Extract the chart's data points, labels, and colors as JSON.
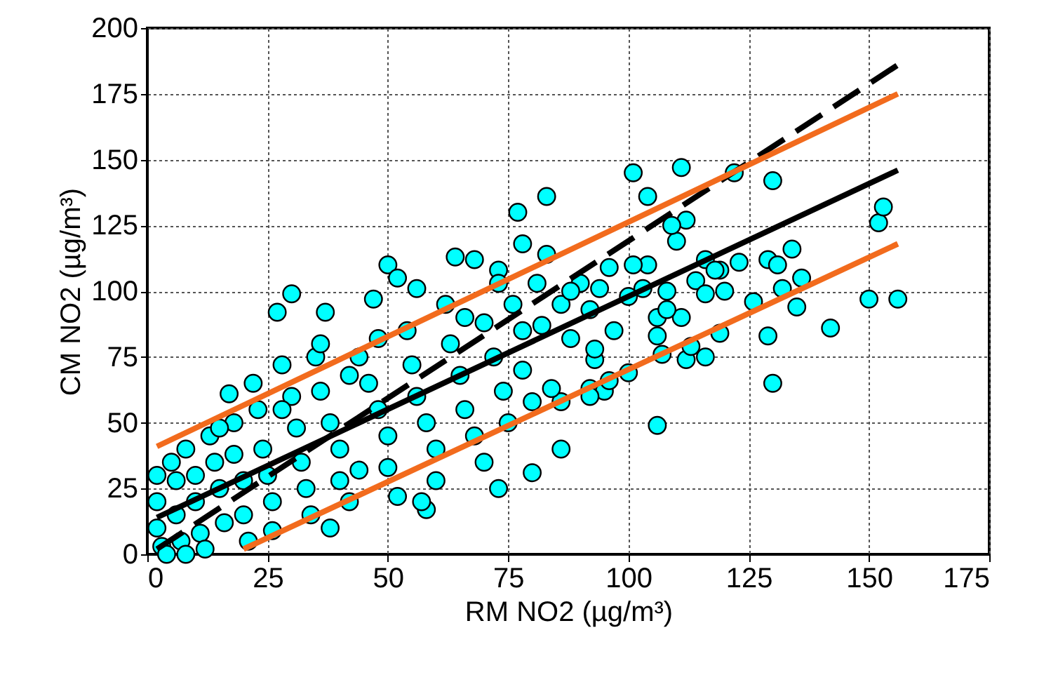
{
  "chart_data": {
    "type": "scatter",
    "xlabel": "RM NO2 (µg/m³)",
    "ylabel": "CM NO2 (µg/m³)",
    "xlim": [
      0,
      175
    ],
    "xticks": [
      0,
      25,
      50,
      75,
      100,
      125,
      150,
      175
    ],
    "ylim": [
      0,
      200
    ],
    "yticks": [
      0,
      25,
      50,
      75,
      100,
      125,
      150,
      175,
      200
    ],
    "grid": true,
    "series": [
      {
        "type": "scatter",
        "marker": "circle",
        "color": "#00ffff",
        "x": [
          27,
          30,
          37,
          50,
          52,
          56,
          64,
          68,
          73,
          77,
          78,
          83,
          83,
          101,
          104,
          111,
          112,
          110,
          109,
          122,
          130,
          129,
          131,
          134,
          132,
          136,
          135,
          126,
          123,
          119,
          116,
          119,
          142,
          150,
          156,
          152,
          153,
          130,
          129,
          106,
          100,
          112,
          116,
          113,
          111,
          106,
          106,
          108,
          103,
          104,
          101,
          96,
          94,
          97,
          92,
          95,
          92,
          96,
          93,
          93,
          88,
          86,
          80,
          73,
          58,
          57,
          38,
          86,
          84,
          82,
          81,
          86,
          90,
          92,
          100,
          114,
          116,
          118,
          120,
          108,
          107,
          2,
          2,
          2,
          3,
          4,
          5,
          6,
          6,
          7,
          8,
          8,
          10,
          10,
          11,
          12,
          13,
          14,
          15,
          16,
          17,
          18,
          18,
          20,
          20,
          21,
          22,
          23,
          24,
          25,
          26,
          26,
          28,
          30,
          31,
          32,
          33,
          34,
          35,
          36,
          38,
          40,
          40,
          42,
          44,
          46,
          47,
          48,
          50,
          50,
          52,
          54,
          55,
          56,
          58,
          60,
          60,
          62,
          63,
          65,
          66,
          68,
          70,
          70,
          72,
          74,
          75,
          76,
          78,
          78,
          80,
          48,
          42,
          36,
          28,
          15,
          44,
          66,
          73,
          88
        ],
        "values": [
          92,
          99,
          92,
          110,
          105,
          101,
          113,
          112,
          108,
          130,
          118,
          136,
          114,
          145,
          136,
          147,
          127,
          119,
          125,
          145,
          142,
          112,
          110,
          116,
          101,
          105,
          94,
          96,
          111,
          108,
          112,
          84,
          86,
          97,
          97,
          126,
          132,
          65,
          83,
          49,
          69,
          74,
          75,
          79,
          90,
          83,
          90,
          100,
          101,
          110,
          110,
          109,
          101,
          85,
          63,
          62,
          60,
          66,
          74,
          78,
          82,
          40,
          31,
          25,
          17,
          20,
          10,
          58,
          63,
          87,
          103,
          95,
          103,
          93,
          98,
          104,
          99,
          108,
          100,
          93,
          76,
          30,
          20,
          10,
          3,
          0,
          35,
          28,
          15,
          5,
          0,
          40,
          30,
          20,
          8,
          2,
          45,
          35,
          25,
          12,
          61,
          50,
          38,
          28,
          15,
          5,
          65,
          55,
          40,
          30,
          20,
          9,
          72,
          60,
          48,
          35,
          25,
          15,
          75,
          62,
          50,
          40,
          28,
          20,
          75,
          65,
          97,
          55,
          45,
          33,
          22,
          85,
          72,
          60,
          50,
          40,
          28,
          95,
          80,
          68,
          55,
          45,
          35,
          88,
          75,
          62,
          50,
          95,
          85,
          70,
          58,
          82,
          68,
          80,
          55,
          48,
          32,
          90,
          103,
          100
        ]
      },
      {
        "type": "line",
        "color": "#000000",
        "line_style": "solid",
        "x": [
          2,
          156
        ],
        "values": [
          14,
          146
        ]
      },
      {
        "type": "line",
        "color": "#000000",
        "line_style": "dashed",
        "x": [
          2,
          156
        ],
        "values": [
          2,
          186
        ]
      },
      {
        "type": "line",
        "color": "#f26b1d",
        "line_style": "solid",
        "x": [
          2,
          156
        ],
        "values": [
          41,
          175
        ]
      },
      {
        "type": "line",
        "color": "#f26b1d",
        "line_style": "solid",
        "x": [
          20,
          156
        ],
        "values": [
          2,
          118
        ]
      }
    ]
  }
}
